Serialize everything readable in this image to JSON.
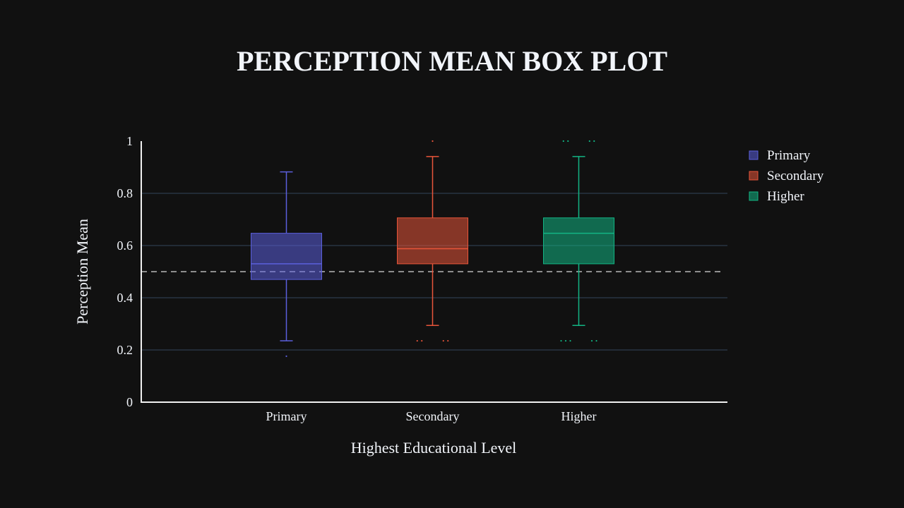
{
  "chart_data": {
    "type": "box",
    "title": "PERCEPTION MEAN BOX PLOT",
    "xlabel": "Highest Educational Level",
    "ylabel": "Perception Mean",
    "ylim": [
      0,
      1
    ],
    "yticks": [
      0,
      0.2,
      0.4,
      0.6,
      0.8,
      1
    ],
    "ytick_labels": [
      "0",
      "0.2",
      "0.4",
      "0.6",
      "0.8",
      "1"
    ],
    "reference_line": {
      "y": 0.5,
      "style": "dashed"
    },
    "grid": true,
    "legend_position": "top-right",
    "categories": [
      "Primary",
      "Secondary",
      "Higher"
    ],
    "series": [
      {
        "name": "Primary",
        "color": "#5b5fdc",
        "min": 0.235,
        "q1": 0.47,
        "median": 0.53,
        "q3": 0.647,
        "max": 0.882,
        "outliers": [
          0.176
        ]
      },
      {
        "name": "Secondary",
        "color": "#e8553a",
        "min": 0.294,
        "q1": 0.53,
        "median": 0.588,
        "q3": 0.706,
        "max": 0.941,
        "outliers": [
          0.235,
          0.235,
          0.235,
          0.235,
          1.0
        ]
      },
      {
        "name": "Higher",
        "color": "#12b584",
        "min": 0.294,
        "q1": 0.53,
        "median": 0.647,
        "q3": 0.706,
        "max": 0.941,
        "outliers": [
          0.235,
          0.235,
          0.235,
          0.235,
          0.235,
          1.0,
          1.0,
          1.0,
          1.0
        ]
      }
    ]
  }
}
